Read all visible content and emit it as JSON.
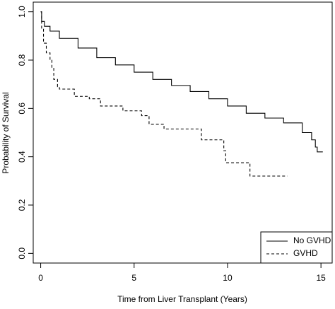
{
  "chart_data": {
    "type": "line",
    "step": true,
    "x_label": "Time from Liver Transplant (Years)",
    "y_label": "Probability of Survival",
    "xlim": [
      -0.4,
      15.6
    ],
    "ylim": [
      -0.04,
      1.04
    ],
    "xticks": [
      0,
      5,
      10,
      15
    ],
    "yticks": [
      {
        "value": 0,
        "label": "0.0"
      },
      0.2,
      0.4,
      0.6,
      0.8,
      {
        "value": 1,
        "label": "1.0"
      }
    ],
    "legend": "bottom-right",
    "series": [
      {
        "name": "No GVHD",
        "color": "#000000",
        "dash": false,
        "x": [
          0,
          0.05,
          0.2,
          0.5,
          1,
          2,
          3,
          4,
          5,
          6,
          7,
          8,
          9,
          10,
          11,
          12,
          13,
          14,
          14.5,
          14.7,
          14.8,
          15.1
        ],
        "values": [
          1.0,
          0.96,
          0.94,
          0.92,
          0.89,
          0.85,
          0.81,
          0.78,
          0.75,
          0.72,
          0.695,
          0.67,
          0.64,
          0.61,
          0.58,
          0.56,
          0.54,
          0.5,
          0.47,
          0.44,
          0.42,
          0.42
        ]
      },
      {
        "name": "GVHD",
        "color": "#000000",
        "dash": true,
        "x": [
          0,
          0.05,
          0.15,
          0.3,
          0.5,
          0.6,
          0.7,
          0.9,
          1.0,
          1.8,
          2.6,
          3.2,
          4.4,
          5.4,
          5.8,
          6.6,
          8.6,
          9.8,
          9.9,
          11.2,
          13.2
        ],
        "values": [
          1.0,
          0.93,
          0.87,
          0.83,
          0.8,
          0.77,
          0.72,
          0.69,
          0.68,
          0.65,
          0.64,
          0.61,
          0.59,
          0.57,
          0.535,
          0.515,
          0.47,
          0.425,
          0.375,
          0.32,
          0.32
        ]
      }
    ]
  }
}
